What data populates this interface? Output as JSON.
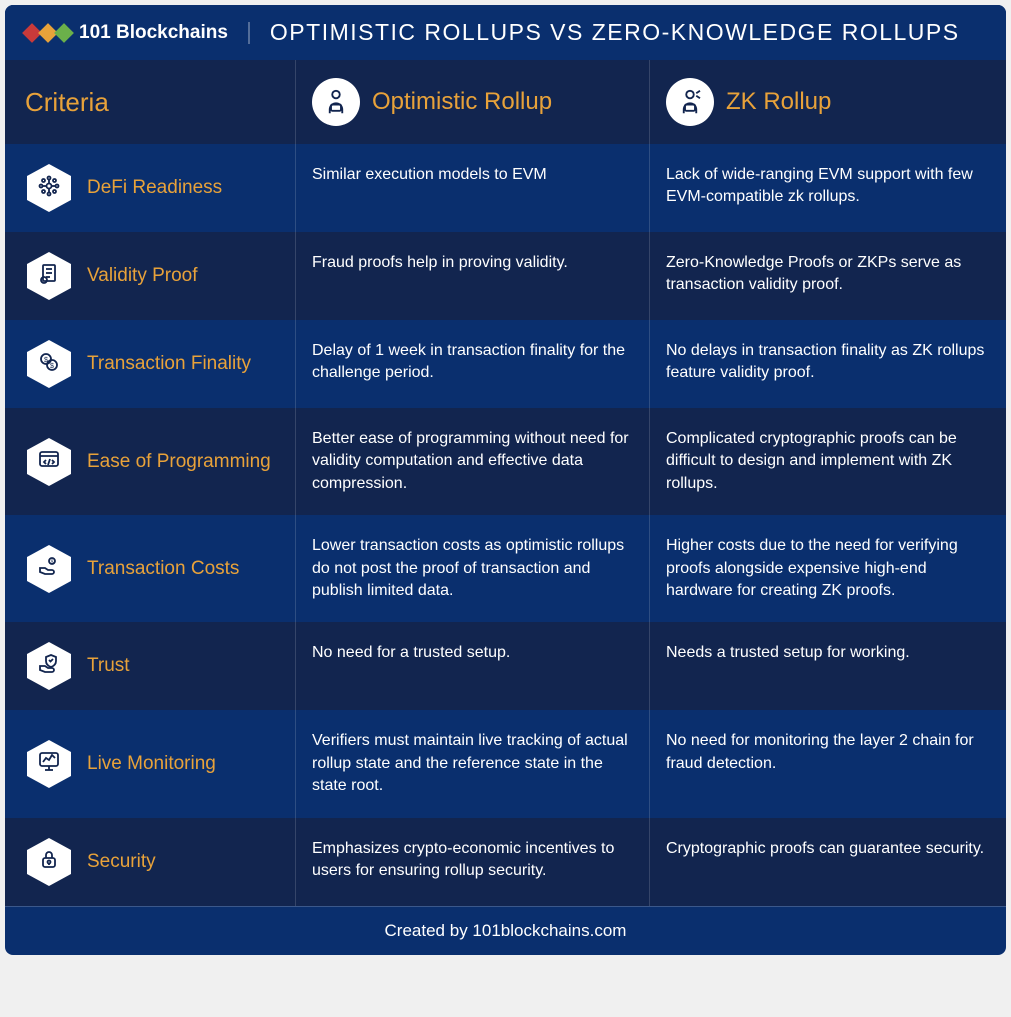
{
  "brand": "101 Blockchains",
  "title": "OPTIMISTIC ROLLUPS VS ZERO-KNOWLEDGE ROLLUPS",
  "columns": {
    "criteria": "Criteria",
    "optimistic": "Optimistic Rollup",
    "zk": "ZK Rollup"
  },
  "rows": [
    {
      "criteria": "DeFi Readiness",
      "optimistic": "Similar execution models to EVM",
      "zk": "Lack of wide-ranging EVM support with few EVM-compatible zk rollups.",
      "icon": "network"
    },
    {
      "criteria": "Validity Proof",
      "optimistic": "Fraud proofs help in proving validity.",
      "zk": "Zero-Knowledge Proofs or ZKPs serve as transaction validity proof.",
      "icon": "document"
    },
    {
      "criteria": "Transaction Finality",
      "optimistic": "Delay of 1 week in transaction finality for the challenge period.",
      "zk": "No delays in transaction finality as ZK rollups feature validity proof.",
      "icon": "dollar"
    },
    {
      "criteria": "Ease of Programming",
      "optimistic": "Better ease of programming without need for validity computation and effective data compression.",
      "zk": "Complicated cryptographic proofs can be difficult to design and implement with ZK rollups.",
      "icon": "code"
    },
    {
      "criteria": "Transaction Costs",
      "optimistic": "Lower transaction costs as optimistic rollups do not post the proof of transaction and publish limited data.",
      "zk": "Higher costs due to the need for verifying proofs alongside expensive high-end hardware for creating ZK proofs.",
      "icon": "hand-coin"
    },
    {
      "criteria": "Trust",
      "optimistic": "No need for a trusted setup.",
      "zk": "Needs a trusted setup for working.",
      "icon": "shield"
    },
    {
      "criteria": "Live Monitoring",
      "optimistic": "Verifiers must maintain live tracking of actual rollup state and the reference state in the state root.",
      "zk": "No need for monitoring the layer 2 chain for fraud detection.",
      "icon": "monitor"
    },
    {
      "criteria": "Security",
      "optimistic": "Emphasizes crypto-economic incentives to users for ensuring rollup security.",
      "zk": "Cryptographic proofs can guarantee security.",
      "icon": "lock"
    }
  ],
  "footer": "Created by 101blockchains.com",
  "colors": {
    "bg_dark": "#0a2f6e",
    "bg_darker": "#12254f",
    "accent": "#e8a23a",
    "text": "#ffffff",
    "hex_fill": "#ffffff"
  }
}
